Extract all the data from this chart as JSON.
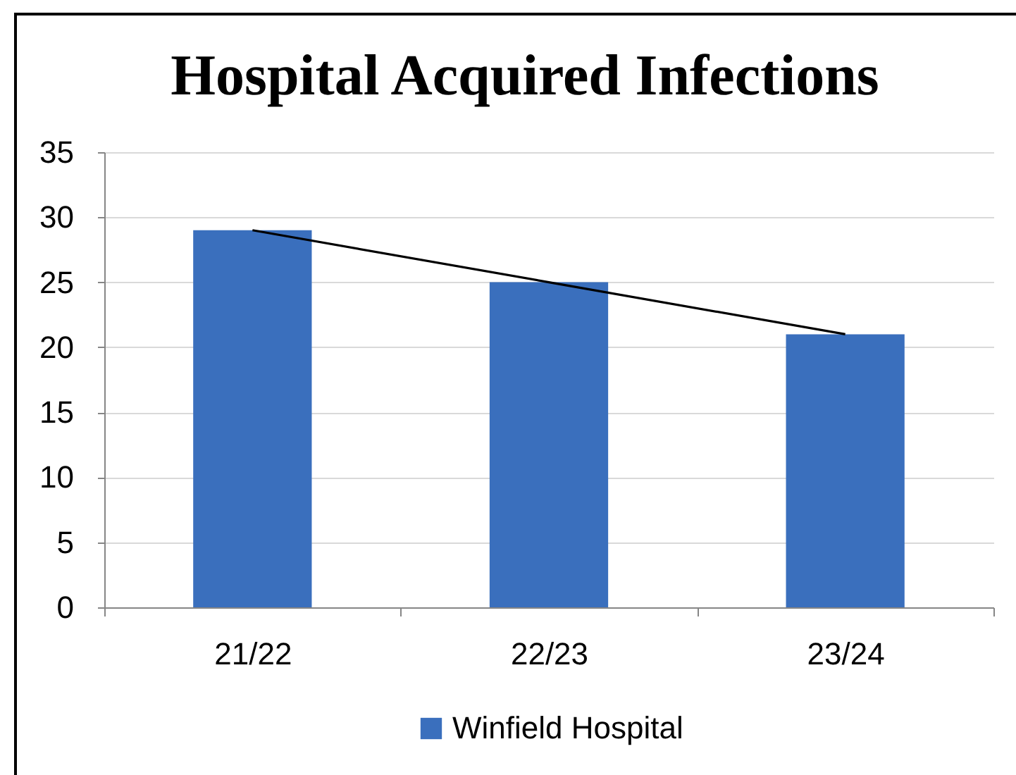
{
  "chart_data": {
    "type": "bar",
    "title": "Hospital Acquired Infections",
    "categories": [
      "21/22",
      "22/23",
      "23/24"
    ],
    "series": [
      {
        "name": "Winfield Hospital",
        "color": "#3a6fbd",
        "values": [
          29,
          25,
          21
        ]
      },
      {
        "type": "line",
        "color": "#000000",
        "values": [
          29,
          25,
          21
        ]
      }
    ],
    "ylim": [
      0,
      35
    ],
    "yticks": [
      0,
      5,
      10,
      15,
      20,
      25,
      30,
      35
    ],
    "grid": "y",
    "legend": "bottom"
  }
}
